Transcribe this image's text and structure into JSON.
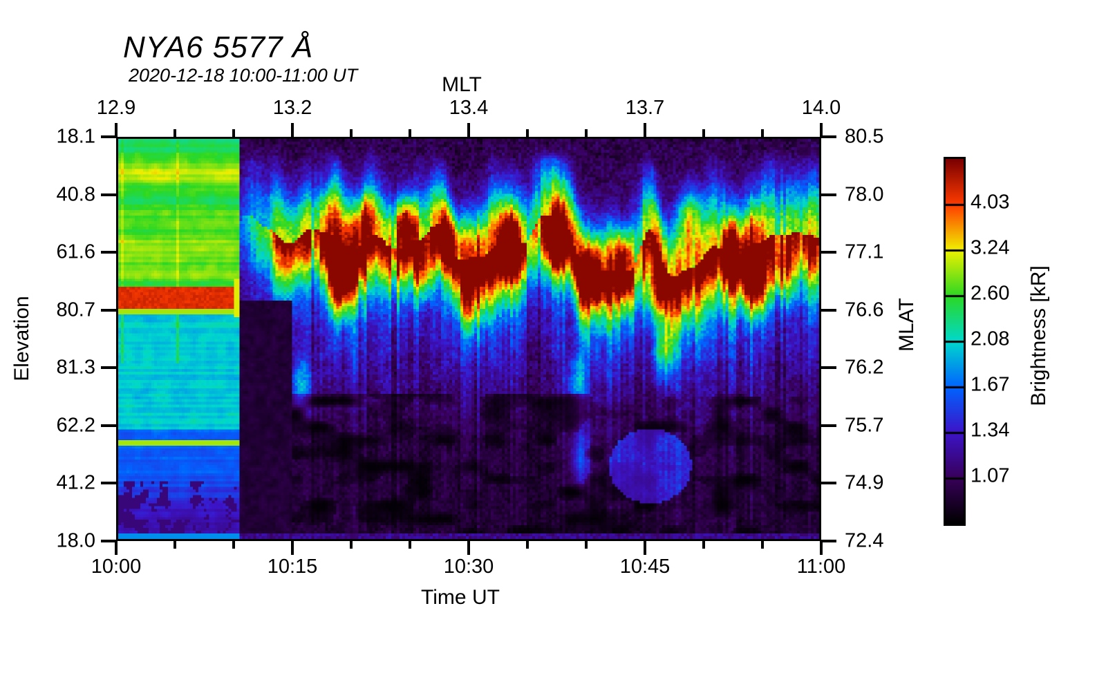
{
  "header": {
    "title": "NYA6 5577 Å",
    "subtitle": "2020-12-18 10:00-11:00 UT"
  },
  "chart_data": {
    "type": "heatmap",
    "title": "NYA6 5577 Å",
    "subtitle": "2020-12-18 10:00-11:00 UT",
    "description": "Auroral keogram of 5577 A green-line brightness vs time (UT) and elevation; sunlit/cloudy green block with saturated red stripe before ~10:11 UT, then structured auroral arcs (green/yellow/red cores) over a dark background.",
    "bottom_axis": {
      "label": "Time UT",
      "ticks": [
        "10:00",
        "10:15",
        "10:30",
        "10:45",
        "11:00"
      ],
      "minor_ticks_between": 2
    },
    "top_axis": {
      "label": "MLT",
      "ticks": [
        "12.9",
        "13.2",
        "13.4",
        "13.7",
        "14.0"
      ],
      "minor_ticks_between": 2
    },
    "left_axis": {
      "label": "Elevation",
      "ticks": [
        "18.1",
        "40.8",
        "61.6",
        "80.7",
        "81.3",
        "62.2",
        "41.2",
        "18.0"
      ]
    },
    "right_axis": {
      "label": "MLAT",
      "ticks": [
        "80.5",
        "78.0",
        "77.1",
        "76.6",
        "76.2",
        "75.7",
        "74.9",
        "72.4"
      ]
    },
    "colorbar": {
      "label": "Brightness [kR]",
      "tick_labels": [
        "4.03",
        "3.24",
        "2.60",
        "2.08",
        "1.67",
        "1.34",
        "1.07"
      ],
      "segments": 8,
      "colormap_stops": [
        [
          0.0,
          "#000000"
        ],
        [
          0.125,
          "#38005a"
        ],
        [
          0.25,
          "#3c14c8"
        ],
        [
          0.375,
          "#0064ff"
        ],
        [
          0.5,
          "#00d8cc"
        ],
        [
          0.625,
          "#2cd822"
        ],
        [
          0.75,
          "#f0f000"
        ],
        [
          0.875,
          "#ff3c00"
        ],
        [
          1.0,
          "#7a0000"
        ]
      ]
    },
    "features": {
      "seed": 7,
      "sunlit_block_end_frac": 0.17,
      "red_stripe_elev_frac": [
        0.368,
        0.426
      ],
      "dark_column_time_frac": [
        0.172,
        0.247
      ],
      "band_center_frac": 0.27,
      "hotspots": [
        [
          0.315,
          0.37,
          0.45
        ],
        [
          0.355,
          0.2,
          0.35
        ],
        [
          0.41,
          0.215,
          0.55
        ],
        [
          0.435,
          0.33,
          0.3
        ],
        [
          0.47,
          0.24,
          0.4
        ],
        [
          0.5,
          0.42,
          0.3
        ],
        [
          0.56,
          0.26,
          0.45
        ],
        [
          0.625,
          0.255,
          0.55
        ],
        [
          0.675,
          0.33,
          0.5
        ],
        [
          0.655,
          0.62,
          0.3
        ],
        [
          0.66,
          0.8,
          0.4
        ],
        [
          0.72,
          0.3,
          0.35
        ],
        [
          0.77,
          0.385,
          0.45
        ],
        [
          0.78,
          0.53,
          0.35
        ],
        [
          0.815,
          0.19,
          0.4
        ],
        [
          0.875,
          0.28,
          0.5
        ],
        [
          0.91,
          0.37,
          0.5
        ],
        [
          0.95,
          0.33,
          0.35
        ],
        [
          0.26,
          0.63,
          0.35
        ]
      ]
    }
  }
}
